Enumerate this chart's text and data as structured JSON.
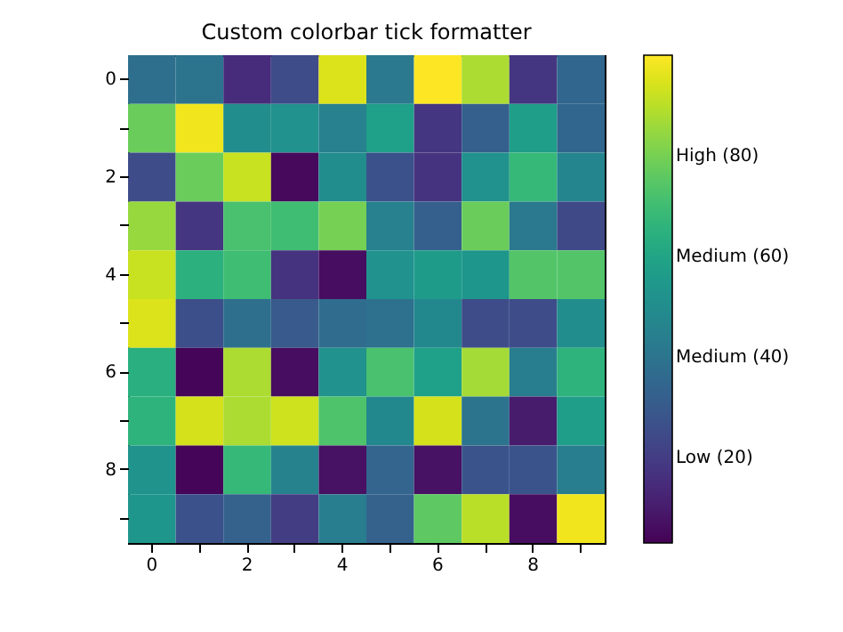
{
  "chart_data": {
    "type": "heatmap",
    "title": "Custom colorbar tick formatter",
    "categories": [
      "0",
      null,
      "2",
      null,
      "4",
      null,
      "6",
      null,
      "8",
      null
    ],
    "y_categories": [
      "0",
      null,
      "2",
      null,
      "4",
      null,
      "6",
      null,
      "8",
      null
    ],
    "cells": [
      [
        38,
        40,
        15,
        25,
        95,
        42,
        100,
        88,
        18,
        35
      ],
      [
        78,
        98,
        50,
        52,
        45,
        58,
        18,
        32,
        57,
        35
      ],
      [
        25,
        78,
        92,
        5,
        50,
        27,
        17,
        52,
        68,
        47
      ],
      [
        85,
        18,
        72,
        70,
        80,
        45,
        32,
        78,
        42,
        24
      ],
      [
        92,
        65,
        70,
        17,
        6,
        52,
        56,
        54,
        74,
        74
      ],
      [
        95,
        26,
        38,
        30,
        37,
        39,
        48,
        25,
        25,
        50
      ],
      [
        64,
        4,
        88,
        6,
        52,
        72,
        58,
        87,
        44,
        66
      ],
      [
        66,
        94,
        88,
        93,
        73,
        48,
        94,
        40,
        10,
        57
      ],
      [
        53,
        4,
        68,
        46,
        7,
        34,
        7,
        28,
        28,
        44
      ],
      [
        54,
        27,
        33,
        20,
        44,
        33,
        76,
        90,
        6,
        98
      ]
    ],
    "clim": [
      3,
      100
    ],
    "cticks": [
      {
        "value": 20,
        "label": "Low (20)"
      },
      {
        "value": 40,
        "label": "Medium (40)"
      },
      {
        "value": 60,
        "label": "Medium (60)"
      },
      {
        "value": 80,
        "label": "High (80)"
      }
    ]
  }
}
